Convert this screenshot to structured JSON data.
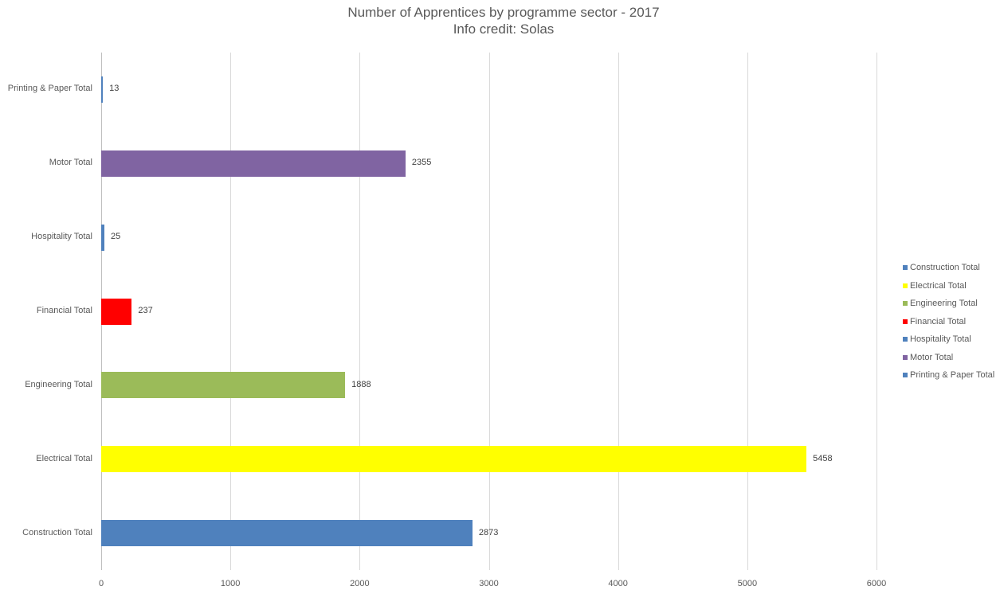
{
  "chart_data": {
    "type": "bar",
    "orientation": "horizontal",
    "title": "Number of Apprentices by programme sector - 2017",
    "subtitle": "Info credit: Solas",
    "xlabel": "",
    "ylabel": "",
    "xlim": [
      0,
      6000
    ],
    "x_ticks": [
      "0",
      "1000",
      "2000",
      "3000",
      "4000",
      "5000",
      "6000"
    ],
    "grid": true,
    "legend_position": "right",
    "categories": [
      "Construction Total",
      "Electrical Total",
      "Engineering Total",
      "Financial Total",
      "Hospitality Total",
      "Motor Total",
      "Printing & Paper Total"
    ],
    "values": [
      2873,
      5458,
      1888,
      237,
      25,
      2355,
      13
    ],
    "colors": [
      "#4f81bd",
      "#ffff00",
      "#9bbb59",
      "#ff0000",
      "#4f81bd",
      "#8064a2",
      "#4f81bd"
    ],
    "data_labels": [
      "2873",
      "5458",
      "1888",
      "237",
      "25",
      "2355",
      "13"
    ],
    "legend": [
      "Construction Total",
      "Electrical Total",
      "Engineering Total",
      "Financial Total",
      "Hospitality Total",
      "Motor Total",
      "Printing & Paper Total"
    ]
  }
}
